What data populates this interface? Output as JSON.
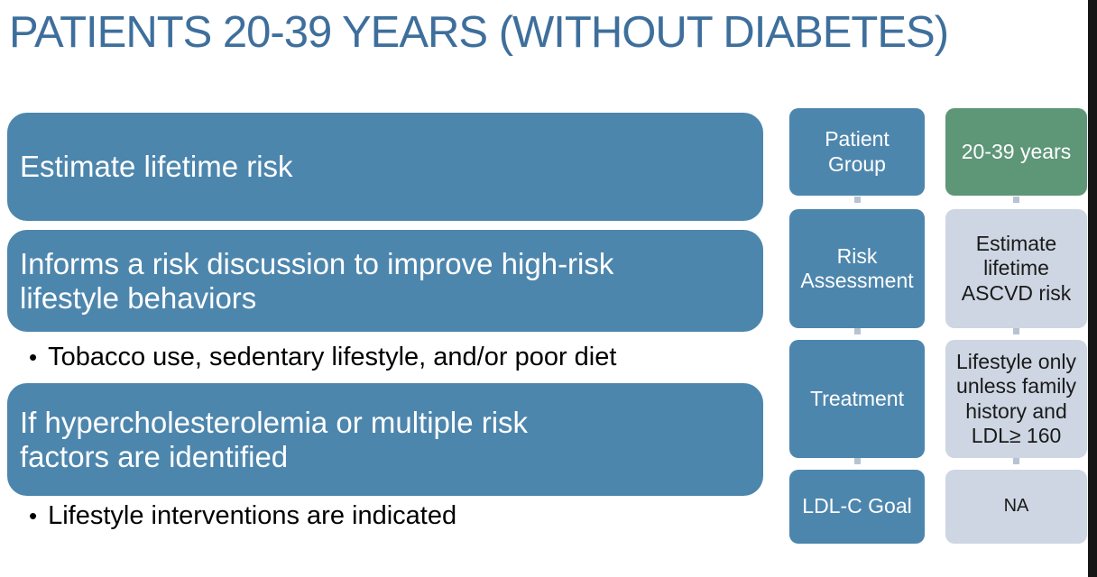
{
  "title": "PATIENTS 20-39 YEARS (WITHOUT DIABETES)",
  "bullet_marker": "•",
  "left_panel": {
    "bar1": "Estimate lifetime risk",
    "bar2": "Informs a risk discussion to improve high-risk\nlifestyle behaviors",
    "bullet1": "Tobacco use, sedentary lifestyle, and/or poor diet",
    "bar3": "If hypercholesterolemia or multiple risk\nfactors are identified",
    "bullet2": "Lifestyle interventions are indicated"
  },
  "table": {
    "rows": [
      {
        "label": "Patient\nGroup",
        "value": "20-39 years"
      },
      {
        "label": "Risk\nAssessment",
        "value": "Estimate\nlifetime\nASCVD risk"
      },
      {
        "label": "Treatment",
        "value": "Lifestyle only\nunless family\nhistory and\nLDL≥ 160"
      },
      {
        "label": "LDL-C Goal",
        "value": "NA"
      }
    ]
  },
  "colors": {
    "title_text": "#3E6F9C",
    "bar_blue": "#4D86AD",
    "green_accent": "#5E9678",
    "light_cell": "#CDD6E2",
    "bullet_text": "#000000",
    "edge_strip": "#161616"
  }
}
